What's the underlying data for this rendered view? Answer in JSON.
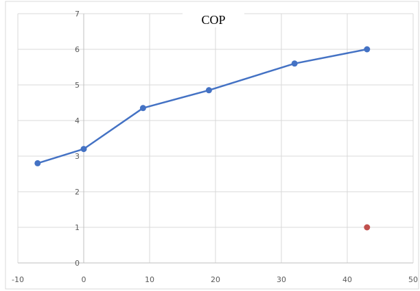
{
  "chart_data": {
    "type": "line",
    "title": "COP",
    "xlabel": "",
    "ylabel": "",
    "xlim": [
      -10,
      50
    ],
    "ylim": [
      0,
      7
    ],
    "x_ticks": [
      "-10",
      "0",
      "10",
      "20",
      "30",
      "40",
      "50"
    ],
    "y_ticks": [
      "0",
      "1",
      "2",
      "3",
      "4",
      "5",
      "6",
      "7"
    ],
    "grid": true,
    "legend": "none",
    "series": [
      {
        "color": "#4472C4",
        "marker": "circle",
        "x": [
          -7,
          0,
          9,
          19,
          32,
          43
        ],
        "y": [
          2.8,
          3.2,
          4.35,
          4.85,
          5.6,
          6.0
        ]
      },
      {
        "color": "#C0504D",
        "marker": "circle",
        "line": false,
        "x": [
          43
        ],
        "y": [
          1.0
        ]
      }
    ]
  }
}
